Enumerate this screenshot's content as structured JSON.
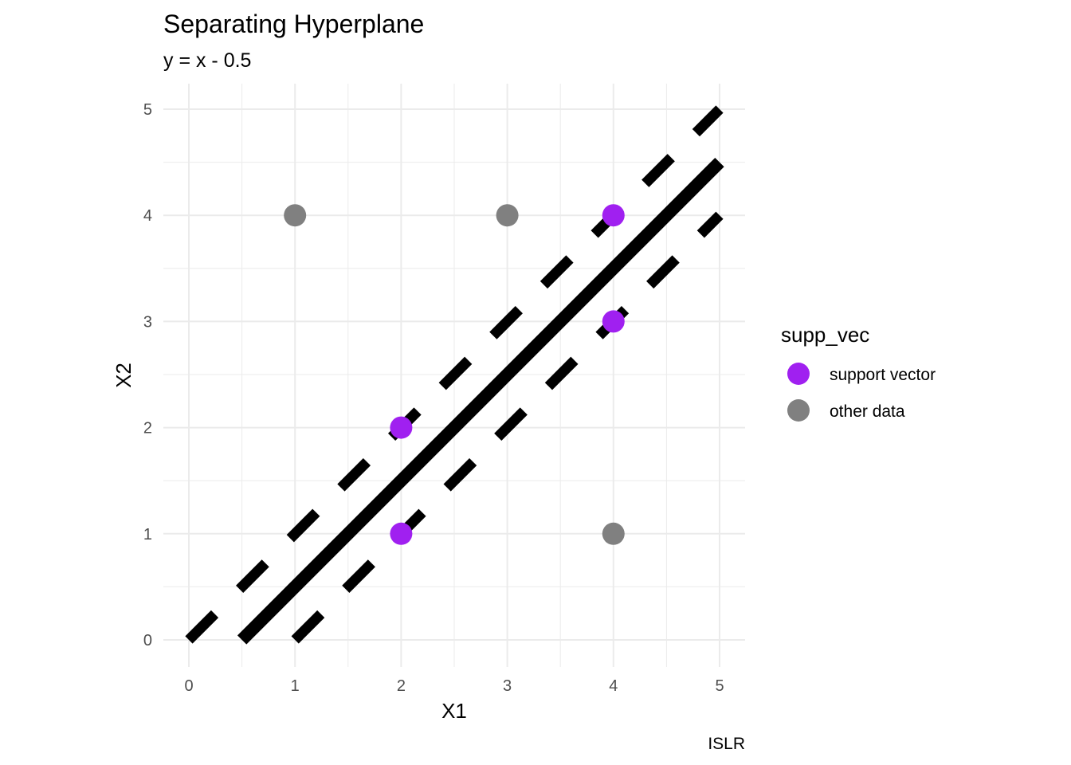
{
  "chart_data": {
    "type": "scatter",
    "title": "Separating Hyperplane",
    "subtitle": "y = x - 0.5",
    "xlabel": "X1",
    "ylabel": "X2",
    "caption": "ISLR",
    "xlim": [
      0,
      5
    ],
    "ylim": [
      0,
      5
    ],
    "x_ticks": [
      "0",
      "1",
      "2",
      "3",
      "4",
      "5"
    ],
    "y_ticks": [
      "0",
      "1",
      "2",
      "3",
      "4",
      "5"
    ],
    "grid": true,
    "legend": {
      "title": "supp_vec",
      "position": "right",
      "entries": [
        {
          "label": "support vector",
          "color": "#a020f0"
        },
        {
          "label": "other data",
          "color": "#808080"
        }
      ]
    },
    "points": [
      {
        "x": 1,
        "y": 4,
        "group": "other data"
      },
      {
        "x": 3,
        "y": 4,
        "group": "other data"
      },
      {
        "x": 4,
        "y": 1,
        "group": "other data"
      },
      {
        "x": 4,
        "y": 4,
        "group": "support vector"
      },
      {
        "x": 4,
        "y": 3,
        "group": "support vector"
      },
      {
        "x": 2,
        "y": 2,
        "group": "support vector"
      },
      {
        "x": 2,
        "y": 1,
        "group": "support vector"
      }
    ],
    "lines": [
      {
        "style": "solid",
        "intercept": -0.5,
        "slope": 1,
        "x_range": [
          0.5,
          5
        ]
      },
      {
        "style": "dashed",
        "intercept": 0,
        "slope": 1,
        "x_range": [
          0,
          5
        ]
      },
      {
        "style": "dashed",
        "intercept": -1,
        "slope": 1,
        "x_range": [
          1,
          5
        ]
      }
    ],
    "colors": {
      "support vector": "#a020f0",
      "other data": "#808080",
      "line": "#000000",
      "grid": "#ebebeb"
    }
  }
}
